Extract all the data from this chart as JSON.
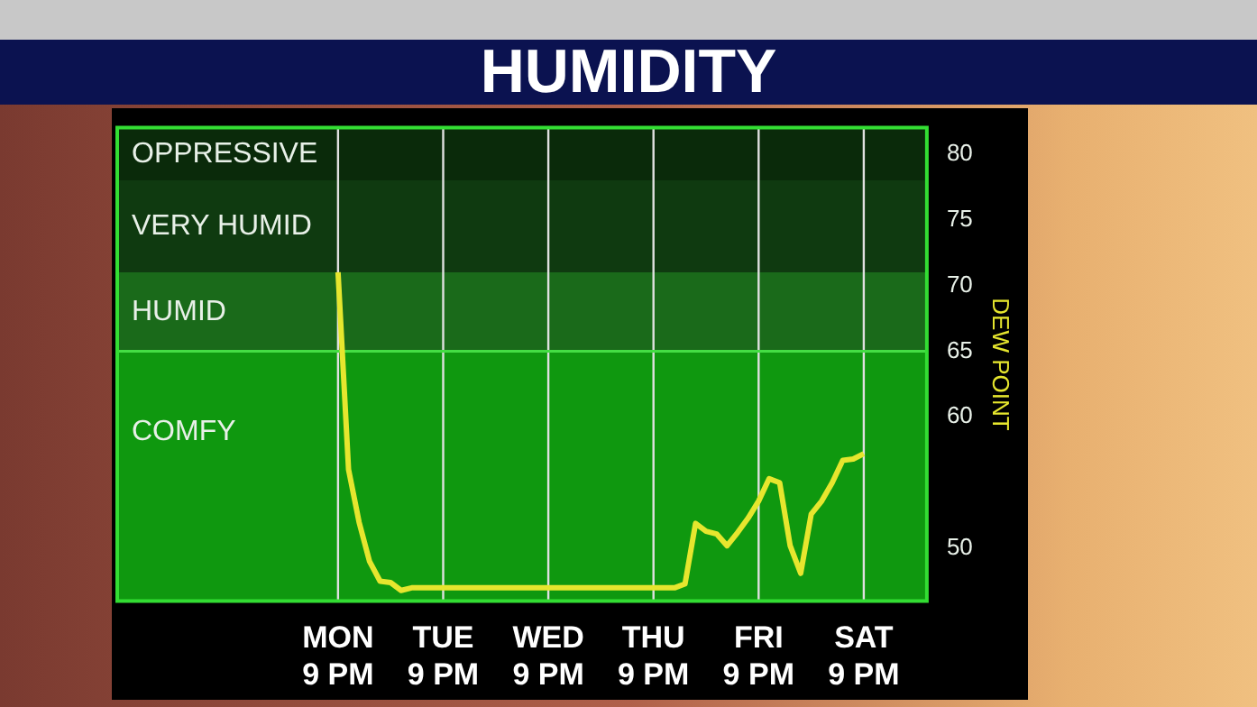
{
  "chart_data": {
    "type": "line",
    "title": "HUMIDITY",
    "ylabel": "DEW POINT",
    "categories": [
      null,
      null,
      null,
      null,
      null,
      null,
      null,
      null,
      null,
      null,
      null,
      null,
      null,
      null,
      null,
      null,
      null,
      null,
      null,
      null,
      null,
      "MON\n9 PM",
      null,
      null,
      null,
      null,
      null,
      null,
      null,
      null,
      null,
      "TUE\n9 PM",
      null,
      null,
      null,
      null,
      null,
      null,
      null,
      null,
      null,
      "WED\n9 PM",
      null,
      null,
      null,
      null,
      null,
      null,
      null,
      null,
      null,
      "THU\n9 PM",
      null,
      null,
      null,
      null,
      null,
      null,
      null,
      null,
      null,
      "FRI\n9 PM",
      null,
      null,
      null,
      null,
      null,
      null,
      null,
      null,
      null,
      "SAT\n9 PM",
      null,
      null,
      null,
      null,
      null,
      null
    ],
    "series": [
      {
        "color": "#e6e62e",
        "values": [
          null,
          null,
          null,
          null,
          null,
          null,
          null,
          null,
          null,
          null,
          null,
          null,
          null,
          null,
          null,
          null,
          null,
          null,
          null,
          null,
          null,
          71,
          56,
          52,
          49,
          47.5,
          47.4,
          46.8,
          47,
          47,
          47,
          47,
          47,
          47,
          47,
          47,
          47,
          47,
          47,
          47,
          47,
          47,
          47,
          47,
          47,
          47,
          47,
          47,
          47,
          47,
          47,
          47,
          47,
          47,
          47.3,
          51.9,
          51.3,
          51.1,
          50.2,
          51.2,
          52.3,
          53.6,
          55.3,
          55,
          50.2,
          48.1,
          52.6,
          53.6,
          55,
          56.7,
          56.8,
          57.2,
          null,
          null,
          null,
          null,
          null,
          null
        ]
      }
    ],
    "ylim": [
      46,
      82
    ],
    "yticks": [
      50,
      60,
      65,
      70,
      75,
      80
    ],
    "bands": [
      {
        "axis": "y",
        "from": 78,
        "to": 82,
        "label": "OPPRESSIVE",
        "color": "#0a2a0a"
      },
      {
        "axis": "y",
        "from": 71,
        "to": 78,
        "label": "VERY HUMID",
        "color": "#0f3a10"
      },
      {
        "axis": "y",
        "from": 65,
        "to": 71,
        "label": "HUMID",
        "color": "#1a6a1a"
      },
      {
        "axis": "y",
        "from": 46,
        "to": 65,
        "label": "COMFY",
        "color": "#0f980f"
      }
    ],
    "ref_lines": [
      {
        "axis": "y",
        "value": 65,
        "color": "#44dd44"
      }
    ],
    "grid": "x",
    "marker": "none",
    "line_style": "solid",
    "legend": false
  }
}
